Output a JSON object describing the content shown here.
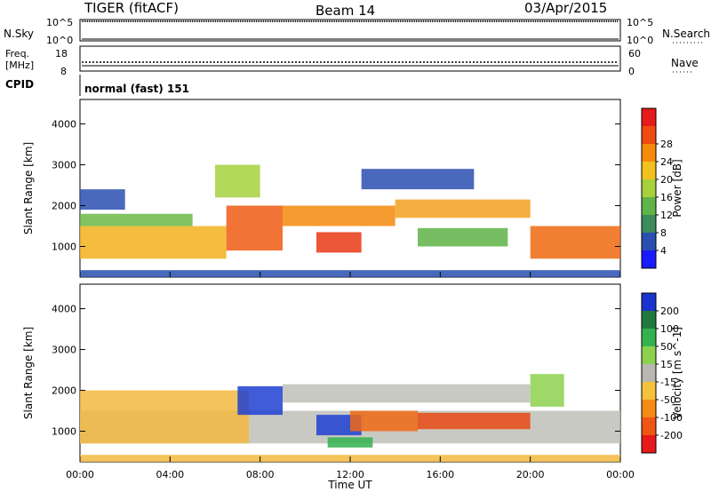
{
  "header": {
    "title": "TIGER (fitACF)",
    "beam": "Beam 14",
    "date": "03/Apr/2015"
  },
  "strips": {
    "nsky": {
      "label": "N.Sky",
      "tick_top": "10^5",
      "tick_bottom": "10^0",
      "right_label": "N.Search",
      "right_tick_top": "10^5",
      "right_tick_bottom": "10^0"
    },
    "freq": {
      "label_line1": "Freq.",
      "label_line2": "[MHz]",
      "tick_top": "18",
      "tick_bottom": "8",
      "right_label": "Nave",
      "right_tick_top": "60",
      "right_tick_bottom": "0"
    },
    "cpid": {
      "label": "CPID",
      "mode_text": "normal (fast) 151"
    }
  },
  "chart_data": [
    {
      "type": "heatmap",
      "name": "Power",
      "ylabel": "Slant Range [km]",
      "yticks": [
        "1000",
        "2000",
        "3000",
        "4000"
      ],
      "ylim": [
        250,
        4600
      ],
      "xlim": [
        0,
        24
      ],
      "colorbar_label": "Power [dB]",
      "colorbar_ticks": [
        "4",
        "8",
        "12",
        "16",
        "20",
        "24",
        "28"
      ],
      "colorbar_colors": [
        "#1a1aff",
        "#2a4fb0",
        "#3d8a5a",
        "#5fb347",
        "#a6d13d",
        "#f1c21e",
        "#f58a0c",
        "#ef4a10",
        "#e61a1a"
      ]
    },
    {
      "type": "heatmap",
      "name": "Velocity",
      "ylabel": "Slant Range [km]",
      "yticks": [
        "1000",
        "2000",
        "3000",
        "4000"
      ],
      "ylim": [
        250,
        4600
      ],
      "xlim": [
        0,
        24
      ],
      "xlabel": "Time UT",
      "xticks": [
        "00:00",
        "04:00",
        "08:00",
        "12:00",
        "16:00",
        "20:00",
        "00:00"
      ],
      "colorbar_label": "Velocity [m s^-1]",
      "colorbar_ticks": [
        "200",
        "100",
        "50",
        "15",
        "-15",
        "-50",
        "-100",
        "-200"
      ],
      "colorbar_colors": [
        "#1a33cc",
        "#1f7a3d",
        "#33b24d",
        "#8cd14d",
        "#b8b8b0",
        "#f5c23d",
        "#f58a14",
        "#ef5514",
        "#e61a1a"
      ]
    }
  ],
  "bands": {
    "power": [
      {
        "t0": 0.0,
        "t1": 6.5,
        "r0": 700,
        "r1": 1500,
        "color": "#f2b21e"
      },
      {
        "t0": 6.5,
        "t1": 9.0,
        "r0": 900,
        "r1": 2000,
        "color": "#ef5a12"
      },
      {
        "t0": 9.0,
        "t1": 14.0,
        "r0": 1500,
        "r1": 2000,
        "color": "#f58a0c"
      },
      {
        "t0": 14.0,
        "t1": 20.0,
        "r0": 1700,
        "r1": 2150,
        "color": "#f1a21e"
      },
      {
        "t0": 20.0,
        "t1": 24.0,
        "r0": 700,
        "r1": 1500,
        "color": "#ef6a12"
      },
      {
        "t0": 0.0,
        "t1": 5.0,
        "r0": 1500,
        "r1": 1800,
        "color": "#6cba44"
      },
      {
        "t0": 10.5,
        "t1": 12.5,
        "r0": 850,
        "r1": 1350,
        "color": "#e83a14"
      },
      {
        "t0": 15.0,
        "t1": 19.0,
        "r0": 1000,
        "r1": 1450,
        "color": "#5fb347"
      },
      {
        "t0": 0.0,
        "t1": 24.0,
        "r0": 250,
        "r1": 420,
        "color": "#2a4fb0"
      },
      {
        "t0": 0.0,
        "t1": 2.0,
        "r0": 1900,
        "r1": 2400,
        "color": "#2a4fb0"
      },
      {
        "t0": 12.5,
        "t1": 17.5,
        "r0": 2400,
        "r1": 2900,
        "color": "#2a4fb0"
      },
      {
        "t0": 6.0,
        "t1": 8.0,
        "r0": 2200,
        "r1": 3000,
        "color": "#a6d13d"
      }
    ],
    "velocity": [
      {
        "t0": 0.0,
        "t1": 24.0,
        "r0": 700,
        "r1": 1500,
        "color": "#c0c0ba"
      },
      {
        "t0": 9.0,
        "t1": 20.0,
        "r0": 1700,
        "r1": 2150,
        "color": "#c0c0ba"
      },
      {
        "t0": 0.0,
        "t1": 7.5,
        "r0": 700,
        "r1": 2000,
        "color": "#f2b840"
      },
      {
        "t0": 7.0,
        "t1": 9.0,
        "r0": 1400,
        "r1": 2100,
        "color": "#1f3fd1"
      },
      {
        "t0": 10.5,
        "t1": 12.5,
        "r0": 900,
        "r1": 1400,
        "color": "#1f3fd1"
      },
      {
        "t0": 12.0,
        "t1": 15.0,
        "r0": 1000,
        "r1": 1500,
        "color": "#ef6a14"
      },
      {
        "t0": 15.0,
        "t1": 20.0,
        "r0": 1050,
        "r1": 1450,
        "color": "#e84a14"
      },
      {
        "t0": 20.0,
        "t1": 21.5,
        "r0": 1600,
        "r1": 2400,
        "color": "#8cd14d"
      },
      {
        "t0": 0.0,
        "t1": 24.0,
        "r0": 250,
        "r1": 420,
        "color": "#f2b840"
      },
      {
        "t0": 11.0,
        "t1": 13.0,
        "r0": 600,
        "r1": 850,
        "color": "#33b24d"
      }
    ]
  }
}
